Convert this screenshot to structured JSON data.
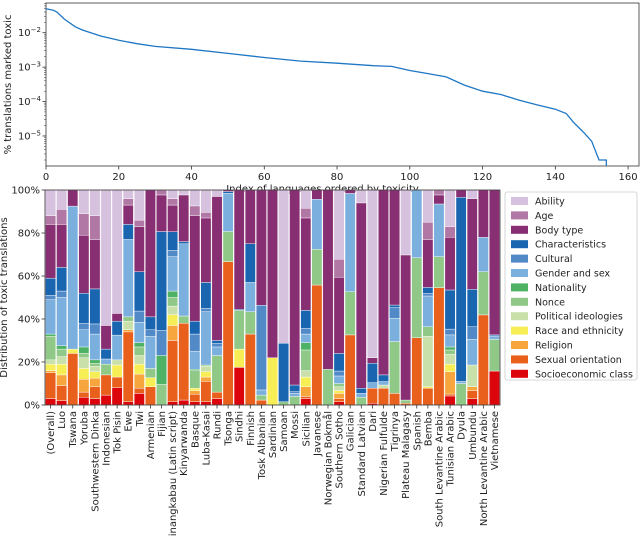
{
  "chart_data": [
    {
      "type": "line",
      "title": "",
      "xlabel": "Index of languages ordered by toxicity",
      "ylabel": "% translations marked toxic",
      "xlim": [
        0,
        163
      ],
      "ylim": [
        1.34e-06,
        0.073
      ],
      "yscale": "log",
      "xticks": [
        0,
        20,
        40,
        60,
        80,
        100,
        120,
        140,
        160
      ],
      "yticks": [
        0.01,
        0.001,
        0.0001,
        1e-05
      ],
      "ytick_labels": [
        "10^-2",
        "10^-3",
        "10^-4",
        "10^-5"
      ],
      "grid": false,
      "color": "#1f77c4",
      "x": [
        0,
        2,
        3,
        5,
        8,
        10,
        15,
        20,
        25,
        30,
        40,
        50,
        60,
        70,
        80,
        90,
        95,
        100,
        105,
        110,
        115,
        120,
        125,
        130,
        135,
        140,
        143,
        145,
        148,
        150,
        152,
        154,
        154
      ],
      "y": [
        0.05,
        0.045,
        0.04,
        0.025,
        0.015,
        0.012,
        0.008,
        0.006,
        0.0048,
        0.004,
        0.0033,
        0.0025,
        0.0019,
        0.0015,
        0.0013,
        0.0011,
        0.00105,
        0.0008,
        0.00065,
        0.00052,
        0.0003,
        0.0002,
        0.00016,
        0.00011,
        8e-05,
        6e-05,
        4.5e-05,
        2.5e-05,
        1.2e-05,
        7e-06,
        2e-06,
        2e-06,
        1.3e-06
      ]
    },
    {
      "type": "bar",
      "stacked": true,
      "title": "",
      "xlabel": "",
      "ylabel": "Distribution of toxic translations",
      "ylim": [
        0,
        100
      ],
      "yticks": [
        "0%",
        "20%",
        "40%",
        "60%",
        "80%",
        "100%"
      ],
      "legend_position": "right",
      "categories": [
        "(Overall)",
        "Luo",
        "Tswana",
        "Yoruba",
        "Southwestern Dinka",
        "Indonesian",
        "Tok Pisin",
        "Ewe",
        "Twi",
        "Armenian",
        "Fijian",
        "Minangkabau (Latin script)",
        "Kinyarwanda",
        "Basque",
        "Luba-Kasai",
        "Rundi",
        "Tsonga",
        "Sindhi",
        "Finnish",
        "Tosk Albanian",
        "Sardinian",
        "Samoan",
        "Mossi",
        "Sicilian",
        "Javanese",
        "Norwegian Bokmål",
        "Southern Sotho",
        "Galician",
        "Standard Latvian",
        "Dari",
        "Nigerian Fulfulde",
        "Tigrinya",
        "Plateau Malagasy",
        "Spanish",
        "Bemba",
        "South Levantine Arabic",
        "Tunisian Arabic",
        "Dyula",
        "Umbundu",
        "North Levantine Arabic",
        "Vietnamese"
      ],
      "series": [
        {
          "name": "Socioeconomic class",
          "color": "#dc050c",
          "values": [
            3,
            2,
            0,
            3.6,
            3,
            4.6,
            8,
            1.5,
            5.4,
            0,
            0,
            1.5,
            2.3,
            1.5,
            1.5,
            3,
            0,
            17.5,
            0,
            0,
            0,
            0,
            0,
            3,
            0,
            0,
            1.5,
            0,
            0,
            0.8,
            0,
            0,
            0,
            0,
            0,
            0,
            4.2,
            0,
            3,
            0,
            15.8
          ]
        },
        {
          "name": "Sexual orientation",
          "color": "#e8601c",
          "values": [
            12,
            7,
            24,
            2.4,
            5.5,
            9.4,
            5,
            32.5,
            2.4,
            8.5,
            0,
            28.5,
            35.7,
            3.5,
            9.5,
            3,
            66.7,
            0,
            33,
            2.3,
            0,
            0,
            0,
            1,
            55.8,
            0,
            1.5,
            32.6,
            0,
            7,
            7.8,
            5.4,
            0.8,
            31.3,
            7.8,
            54.6,
            0.9,
            0,
            3.7,
            41.9,
            0
          ]
        },
        {
          "name": "Religion",
          "color": "#f6a63c",
          "values": [
            1,
            5,
            0,
            6,
            4,
            0,
            0,
            1,
            6.6,
            0,
            0,
            7,
            0,
            1.7,
            2,
            0,
            0,
            0,
            0,
            0,
            0,
            0,
            0,
            4.5,
            0,
            0,
            2.4,
            0,
            0,
            0,
            0,
            0,
            0,
            0,
            0,
            0,
            10.4,
            0,
            1.8,
            0,
            0
          ]
        },
        {
          "name": "Race and ethnicity",
          "color": "#f7ee55",
          "values": [
            3,
            5,
            2,
            5,
            3,
            0,
            5.6,
            0,
            4.6,
            4.2,
            0,
            5,
            0,
            1.1,
            2.5,
            0,
            0,
            8.5,
            0,
            0,
            22,
            0,
            0,
            4.5,
            0,
            0,
            1.3,
            0,
            0,
            0,
            0,
            0,
            0,
            0,
            0.7,
            0,
            3.5,
            0,
            0,
            0,
            0
          ]
        },
        {
          "name": "Political ideologies",
          "color": "#cae0ab",
          "values": [
            2,
            3.5,
            0,
            5,
            2.5,
            0,
            2.4,
            4,
            4,
            0,
            0,
            4,
            0,
            0,
            2.5,
            0,
            0,
            0,
            0,
            0,
            0,
            0,
            0,
            3,
            0,
            0,
            1.8,
            0,
            0,
            0,
            1.5,
            0,
            0,
            0,
            23.5,
            0,
            4.6,
            0,
            10.1,
            0,
            0
          ]
        },
        {
          "name": "Nonce",
          "color": "#90c987",
          "values": [
            11,
            3.5,
            0,
            2,
            1.4,
            5,
            0,
            2,
            4,
            4.3,
            9.6,
            4,
            3.4,
            8.2,
            0.6,
            17,
            14,
            18,
            10.4,
            2.3,
            0,
            1.5,
            4,
            9.6,
            16.6,
            16.6,
            1.5,
            20.1,
            3.6,
            0,
            0,
            24.1,
            1.5,
            37.2,
            4.4,
            14.4,
            2,
            10,
            0,
            20.1,
            14.7
          ]
        },
        {
          "name": "Nationality",
          "color": "#4eb265",
          "values": [
            1,
            1.6,
            0,
            3,
            1.6,
            0,
            0,
            0,
            2,
            0,
            13.4,
            3,
            0,
            0.6,
            0,
            0,
            0,
            0,
            0,
            0,
            0,
            0,
            0,
            3.4,
            0,
            0,
            0,
            0,
            0,
            0,
            0,
            0,
            0,
            0,
            0,
            0,
            1.4,
            0,
            0,
            0,
            0
          ]
        },
        {
          "name": "Gender and sex",
          "color": "#7bafde",
          "values": [
            16,
            22.4,
            66.5,
            8,
            12,
            2.4,
            11.5,
            36,
            9.4,
            15,
            0,
            16,
            33.6,
            8.4,
            24.8,
            4,
            17.8,
            0,
            13.6,
            2.4,
            0,
            0,
            1.4,
            4,
            23.3,
            0,
            3.5,
            45.7,
            1.8,
            2.6,
            1.6,
            10.8,
            0,
            31.5,
            14.3,
            24.5,
            5.6,
            1,
            11.9,
            16,
            1.3
          ]
        },
        {
          "name": "Cultural",
          "color": "#5289c7",
          "values": [
            2,
            3,
            0,
            3,
            4.7,
            0,
            0,
            0,
            5.3,
            3,
            11.6,
            3,
            0,
            8,
            1.6,
            1.7,
            0,
            0,
            0,
            39.4,
            0,
            0,
            0.8,
            2.7,
            0,
            0,
            2.3,
            0,
            0,
            0,
            0,
            5,
            0,
            0,
            1.3,
            0,
            2.7,
            0,
            5.9,
            0,
            0.8
          ]
        },
        {
          "name": "Characteristics",
          "color": "#1965b0",
          "values": [
            8,
            11,
            0,
            14,
            16.3,
            4.6,
            6.5,
            7,
            18.3,
            6,
            46,
            8.6,
            1,
            6,
            12,
            1.3,
            0.8,
            0.5,
            18,
            0,
            0,
            27.2,
            3.1,
            8.3,
            0,
            0,
            8.2,
            0,
            2.4,
            9,
            3.1,
            1.2,
            0,
            0,
            2.7,
            0,
            18.2,
            85.6,
            17.4,
            0,
            0
          ]
        },
        {
          "name": "Body type",
          "color": "#882e72",
          "values": [
            25,
            20,
            7.5,
            27,
            23,
            11,
            3.6,
            9,
            21,
            59,
            17,
            12.4,
            21.7,
            49,
            30,
            67,
            0.7,
            55.5,
            25,
            53.6,
            78,
            0,
            90.7,
            43,
            4.3,
            83.4,
            35.4,
            1.6,
            86.2,
            2.6,
            86,
            53.5,
            67.5,
            0,
            22.3,
            4.2,
            24.5,
            3.4,
            42.2,
            22,
            67.4
          ]
        },
        {
          "name": "Age",
          "color": "#b178a6",
          "values": [
            4,
            7,
            0,
            10,
            11,
            0,
            0,
            3,
            3,
            0,
            2.3,
            3,
            0,
            4.6,
            2.6,
            0,
            0,
            0,
            0,
            0,
            0,
            0,
            0,
            4.5,
            0,
            0,
            8.4,
            0,
            0,
            0,
            0,
            0,
            0,
            0,
            8,
            2.3,
            5,
            0,
            0,
            0,
            0
          ]
        },
        {
          "name": "Ability",
          "color": "#d6c1de",
          "values": [
            12,
            9,
            0,
            11,
            12,
            63,
            57.4,
            4,
            14,
            0,
            0,
            4,
            2.3,
            7.4,
            10.4,
            3,
            0,
            0,
            0,
            0,
            0,
            71.3,
            0,
            8.5,
            0,
            0,
            32.2,
            0,
            6,
            78,
            0,
            0,
            30.2,
            0,
            15,
            0,
            17,
            0,
            4,
            0,
            0
          ]
        }
      ],
      "legend_order": [
        "Ability",
        "Age",
        "Body type",
        "Characteristics",
        "Cultural",
        "Gender and sex",
        "Nationality",
        "Nonce",
        "Political ideologies",
        "Race and ethnicity",
        "Religion",
        "Sexual orientation",
        "Socioeconomic class"
      ]
    }
  ]
}
